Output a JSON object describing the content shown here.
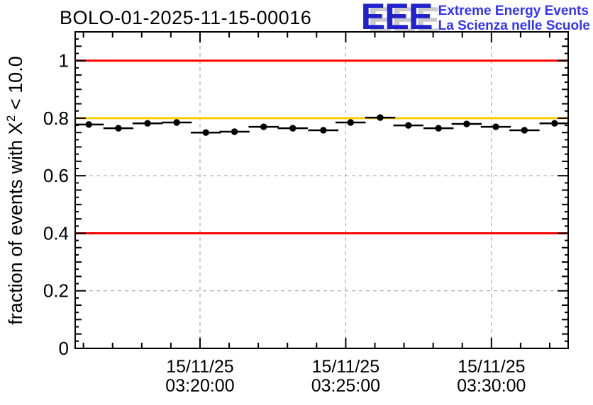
{
  "header": {
    "title": "BOLO-01-2025-11-15-00016"
  },
  "logo": {
    "acronym": "EEE",
    "subtitle_line1": "Extreme Energy Events",
    "subtitle_line2": "La Scienza nelle Scuole",
    "acronym_color": "#2222cc",
    "shadow_color": "#c9c9c9",
    "subtitle_color": "#3333ff"
  },
  "chart_data": {
    "type": "scatter",
    "title": "BOLO-01-2025-11-15-00016",
    "xlabel": "",
    "ylabel": "fraction of events with X^2 < 10.0",
    "ylabel_parts": {
      "pre": "fraction of events with X",
      "sup": "2",
      "post": " < 10.0"
    },
    "ylim": [
      0,
      1.1
    ],
    "x_time_range": [
      "03:15:43",
      "03:32:38"
    ],
    "x_date": "15/11/25",
    "grid": true,
    "grid_color": "#999999",
    "frame_color": "#000000",
    "background_color": "#ffffff",
    "x_ticks": [
      {
        "time": "03:20:00",
        "label_line1": "15/11/25",
        "label_line2": "03:20:00"
      },
      {
        "time": "03:25:00",
        "label_line1": "15/11/25",
        "label_line2": "03:25:00"
      },
      {
        "time": "03:30:00",
        "label_line1": "15/11/25",
        "label_line2": "03:30:00"
      }
    ],
    "x_minor_tick_seconds": 60,
    "y_ticks": [
      {
        "value": 0,
        "label": "0"
      },
      {
        "value": 0.2,
        "label": "0.2"
      },
      {
        "value": 0.4,
        "label": "0.4"
      },
      {
        "value": 0.6,
        "label": "0.6"
      },
      {
        "value": 0.8,
        "label": "0.8"
      },
      {
        "value": 1.0,
        "label": "1"
      }
    ],
    "y_medium_tick_step": 0.05,
    "y_small_tick_step": 0.025,
    "reference_lines": [
      {
        "y": 1.0,
        "color": "#ff0000",
        "name": "upper-reference-line"
      },
      {
        "y": 0.8,
        "color": "#ffcc00",
        "name": "nominal-reference-line"
      },
      {
        "y": 0.4,
        "color": "#ff0000",
        "name": "lower-reference-line"
      }
    ],
    "series": [
      {
        "name": "fraction-of-events",
        "marker": "filled-circle",
        "color": "#000000",
        "x_bin_halfwidth_seconds": 31,
        "y_error": 0.008,
        "points": [
          {
            "time": "03:16:11",
            "value": 0.778
          },
          {
            "time": "03:17:12",
            "value": 0.765
          },
          {
            "time": "03:18:12",
            "value": 0.782
          },
          {
            "time": "03:19:12",
            "value": 0.785
          },
          {
            "time": "03:20:12",
            "value": 0.75
          },
          {
            "time": "03:21:11",
            "value": 0.753
          },
          {
            "time": "03:22:11",
            "value": 0.77
          },
          {
            "time": "03:23:11",
            "value": 0.765
          },
          {
            "time": "03:24:14",
            "value": 0.758
          },
          {
            "time": "03:25:10",
            "value": 0.785
          },
          {
            "time": "03:26:11",
            "value": 0.802
          },
          {
            "time": "03:27:09",
            "value": 0.775
          },
          {
            "time": "03:28:11",
            "value": 0.765
          },
          {
            "time": "03:29:09",
            "value": 0.78
          },
          {
            "time": "03:30:09",
            "value": 0.77
          },
          {
            "time": "03:31:08",
            "value": 0.758
          },
          {
            "time": "03:32:10",
            "value": 0.782
          }
        ]
      }
    ]
  }
}
